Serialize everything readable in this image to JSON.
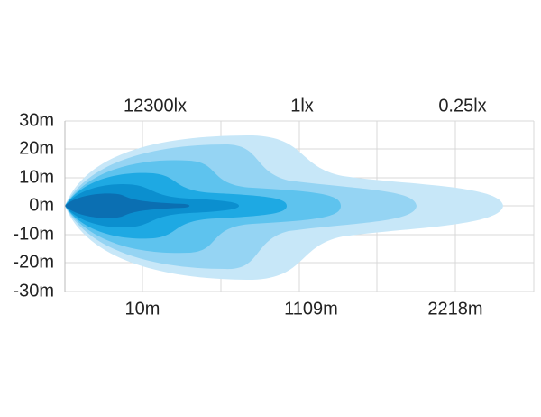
{
  "top_labels": [
    "12300lx",
    "1lx",
    "0.25lx"
  ],
  "y_labels": [
    "30m",
    "20m",
    "10m",
    "0m",
    "-10m",
    "-20m",
    "-30m"
  ],
  "bottom_labels": [
    "10m",
    "1109m",
    "2218m"
  ]
}
